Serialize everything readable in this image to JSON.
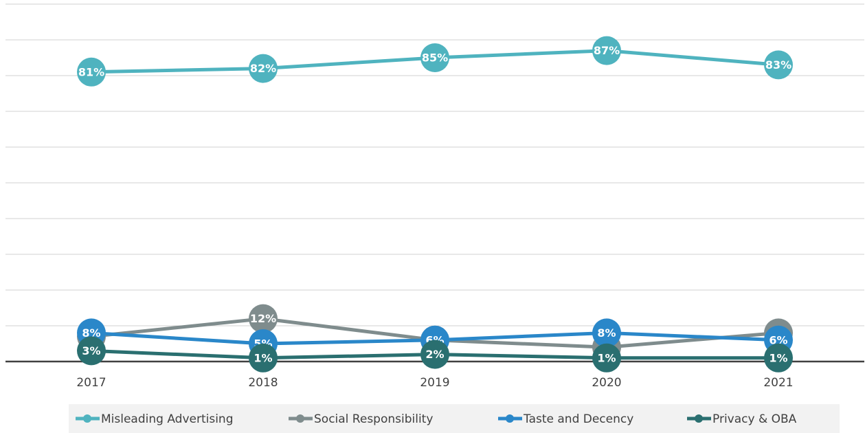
{
  "chart_data": {
    "type": "line",
    "categories": [
      "2017",
      "2018",
      "2019",
      "2020",
      "2021"
    ],
    "ylim": [
      0,
      100
    ],
    "yticks": [
      0,
      10,
      20,
      30,
      40,
      50,
      60,
      70,
      80,
      90,
      100
    ],
    "grid": true,
    "series": [
      {
        "name": "Misleading Advertising",
        "color": "#4fb3bf",
        "values": [
          81,
          82,
          85,
          87,
          83
        ],
        "value_labels": [
          "81%",
          "82%",
          "85%",
          "87%",
          "83%"
        ]
      },
      {
        "name": "Social Responsibility",
        "color": "#7f8c8d",
        "values": [
          7,
          12,
          6,
          4,
          8
        ],
        "value_labels": [
          "7%",
          "12%",
          "6%",
          "4%",
          "8%"
        ]
      },
      {
        "name": "Taste and Decency",
        "color": "#2a87c9",
        "values": [
          8,
          5,
          6,
          8,
          6
        ],
        "value_labels": [
          "8%",
          "5%",
          "6%",
          "8%",
          "6%"
        ]
      },
      {
        "name": "Privacy & OBA",
        "color": "#2a6f70",
        "values": [
          3,
          1,
          2,
          1,
          1
        ],
        "value_labels": [
          "3%",
          "1%",
          "2%",
          "1%",
          "1%"
        ]
      }
    ]
  }
}
